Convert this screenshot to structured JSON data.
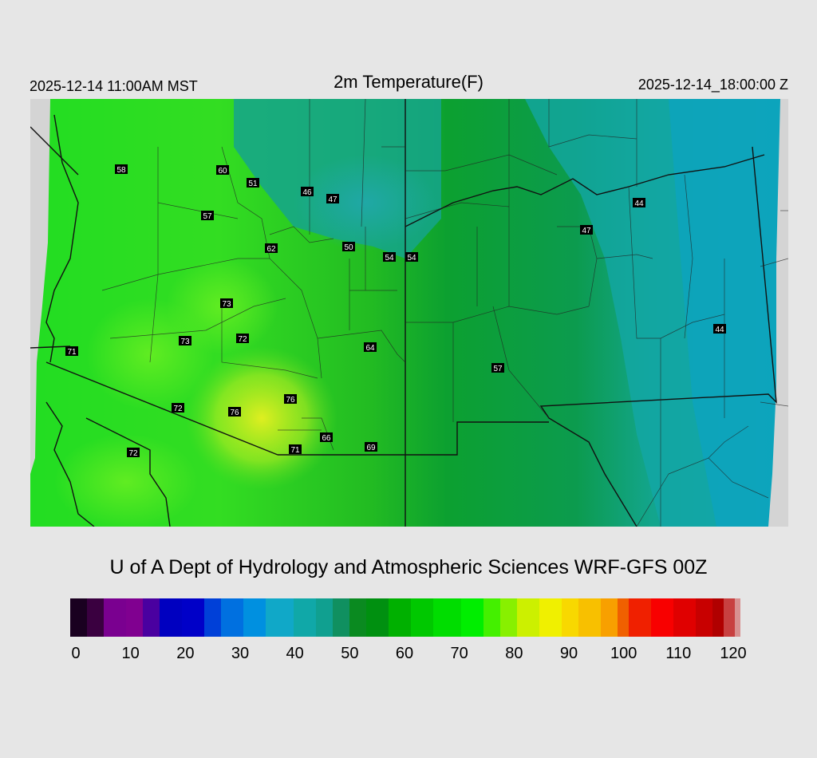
{
  "header": {
    "local_time": "2025-12-14 11:00AM MST",
    "title": "2m Temperature(F)",
    "valid_time": "2025-12-14_18:00:00 Z"
  },
  "credit": "U of A Dept of Hydrology and Atmospheric Sciences WRF-GFS 00Z",
  "stations": [
    {
      "id": "s1",
      "value": "58"
    },
    {
      "id": "s2",
      "value": "60"
    },
    {
      "id": "s3",
      "value": "51"
    },
    {
      "id": "s4",
      "value": "46"
    },
    {
      "id": "s5",
      "value": "47"
    },
    {
      "id": "s6",
      "value": "57"
    },
    {
      "id": "s7",
      "value": "62"
    },
    {
      "id": "s8",
      "value": "50"
    },
    {
      "id": "s9",
      "value": "54"
    },
    {
      "id": "s10",
      "value": "54"
    },
    {
      "id": "s11",
      "value": "44"
    },
    {
      "id": "s12",
      "value": "47"
    },
    {
      "id": "s13",
      "value": "73"
    },
    {
      "id": "s14",
      "value": "73"
    },
    {
      "id": "s15",
      "value": "72"
    },
    {
      "id": "s16",
      "value": "64"
    },
    {
      "id": "s17",
      "value": "44"
    },
    {
      "id": "s18",
      "value": "71"
    },
    {
      "id": "s19",
      "value": "57"
    },
    {
      "id": "s20",
      "value": "72"
    },
    {
      "id": "s21",
      "value": "76"
    },
    {
      "id": "s22",
      "value": "76"
    },
    {
      "id": "s23",
      "value": "66"
    },
    {
      "id": "s24",
      "value": "71"
    },
    {
      "id": "s25",
      "value": "69"
    },
    {
      "id": "s26",
      "value": "72"
    }
  ],
  "colorbar": {
    "min": 0,
    "max": 120,
    "tick_labels": [
      "0",
      "10",
      "20",
      "30",
      "40",
      "50",
      "60",
      "70",
      "80",
      "90",
      "100",
      "110",
      "120"
    ]
  }
}
